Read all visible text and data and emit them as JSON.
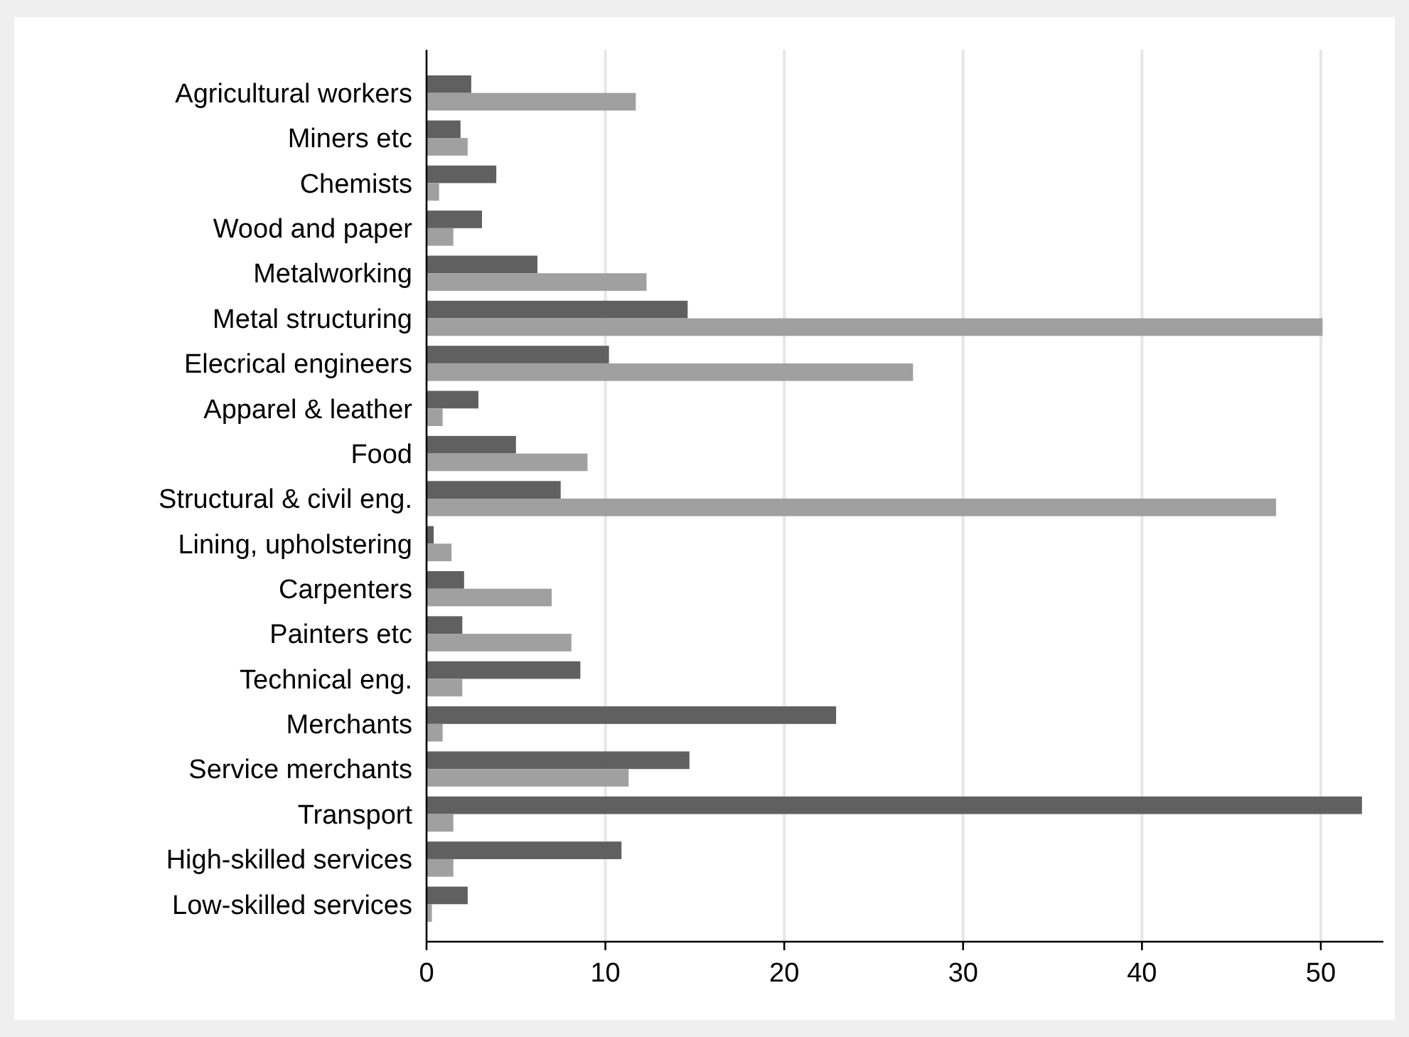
{
  "chart_data": {
    "type": "bar",
    "orientation": "horizontal",
    "categories": [
      "Agricultural workers",
      "Miners etc",
      "Chemists",
      "Wood and paper",
      "Metalworking",
      "Metal structuring",
      "Elecrical engineers",
      "Apparel & leather",
      "Food",
      "Structural & civil eng.",
      "Lining, upholstering",
      "Carpenters",
      "Painters etc",
      "Technical eng.",
      "Merchants",
      "Service merchants",
      "Transport",
      "High-skilled services",
      "Low-skilled services"
    ],
    "series": [
      {
        "color": "#606060",
        "values": [
          2.5,
          1.9,
          3.9,
          3.1,
          6.2,
          14.6,
          10.2,
          2.9,
          5.0,
          7.5,
          0.4,
          2.1,
          2.0,
          8.6,
          22.9,
          14.7,
          52.3,
          10.9,
          2.3
        ]
      },
      {
        "color": "#a0a0a0",
        "values": [
          11.7,
          2.3,
          0.7,
          1.5,
          12.3,
          50.1,
          27.2,
          0.9,
          9.0,
          47.5,
          1.4,
          7.0,
          8.1,
          2.0,
          0.9,
          11.3,
          1.5,
          1.5,
          0.3
        ]
      }
    ],
    "xlim": [
      0,
      53.5
    ],
    "xticks": [
      0,
      10,
      20,
      30,
      40,
      50
    ],
    "grid": "x"
  }
}
